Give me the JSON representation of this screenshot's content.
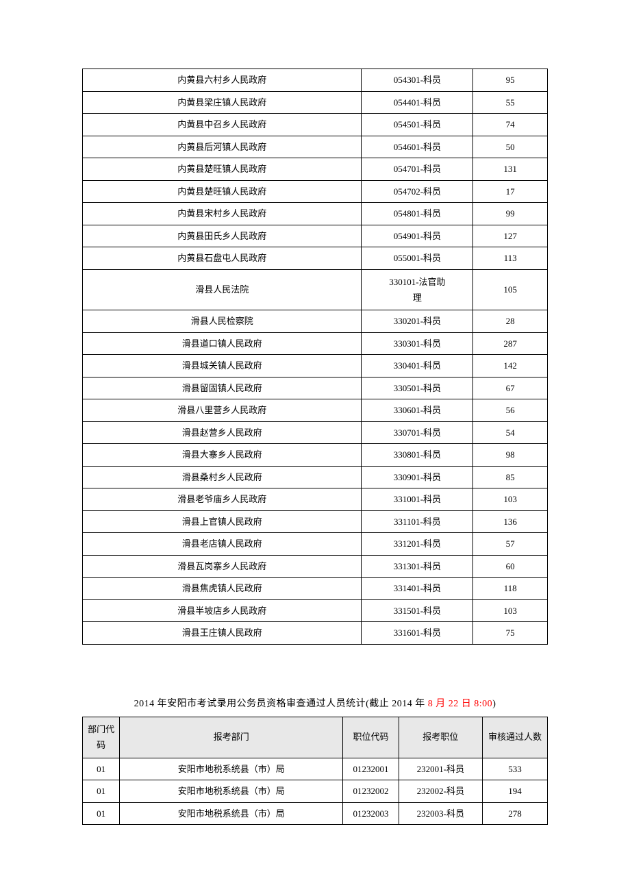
{
  "table1": {
    "rows": [
      {
        "dept": "内黄县六村乡人民政府",
        "pos": "054301-科员",
        "count": "95"
      },
      {
        "dept": "内黄县梁庄镇人民政府",
        "pos": "054401-科员",
        "count": "55"
      },
      {
        "dept": "内黄县中召乡人民政府",
        "pos": "054501-科员",
        "count": "74"
      },
      {
        "dept": "内黄县后河镇人民政府",
        "pos": "054601-科员",
        "count": "50"
      },
      {
        "dept": "内黄县楚旺镇人民政府",
        "pos": "054701-科员",
        "count": "131"
      },
      {
        "dept": "内黄县楚旺镇人民政府",
        "pos": "054702-科员",
        "count": "17"
      },
      {
        "dept": "内黄县宋村乡人民政府",
        "pos": "054801-科员",
        "count": "99"
      },
      {
        "dept": "内黄县田氏乡人民政府",
        "pos": "054901-科员",
        "count": "127"
      },
      {
        "dept": "内黄县石盘屯人民政府",
        "pos": "055001-科员",
        "count": "113"
      },
      {
        "dept": "滑县人民法院",
        "pos": "330101-法官助理",
        "count": "105",
        "twoline": true
      },
      {
        "dept": "滑县人民检察院",
        "pos": "330201-科员",
        "count": "28"
      },
      {
        "dept": "滑县道口镇人民政府",
        "pos": "330301-科员",
        "count": "287"
      },
      {
        "dept": "滑县城关镇人民政府",
        "pos": "330401-科员",
        "count": "142"
      },
      {
        "dept": "滑县留固镇人民政府",
        "pos": "330501-科员",
        "count": "67"
      },
      {
        "dept": "滑县八里营乡人民政府",
        "pos": "330601-科员",
        "count": "56"
      },
      {
        "dept": "滑县赵营乡人民政府",
        "pos": "330701-科员",
        "count": "54"
      },
      {
        "dept": "滑县大寨乡人民政府",
        "pos": "330801-科员",
        "count": "98"
      },
      {
        "dept": "滑县桑村乡人民政府",
        "pos": "330901-科员",
        "count": "85"
      },
      {
        "dept": "滑县老爷庙乡人民政府",
        "pos": "331001-科员",
        "count": "103"
      },
      {
        "dept": "滑县上官镇人民政府",
        "pos": "331101-科员",
        "count": "136"
      },
      {
        "dept": "滑县老店镇人民政府",
        "pos": "331201-科员",
        "count": "57"
      },
      {
        "dept": "滑县瓦岗寨乡人民政府",
        "pos": "331301-科员",
        "count": "60"
      },
      {
        "dept": "滑县焦虎镇人民政府",
        "pos": "331401-科员",
        "count": "118"
      },
      {
        "dept": "滑县半坡店乡人民政府",
        "pos": "331501-科员",
        "count": "103"
      },
      {
        "dept": "滑县王庄镇人民政府",
        "pos": "331601-科员",
        "count": "75"
      }
    ]
  },
  "title2": {
    "prefix": "2014 年安阳市考试录用公务员资格审查通过人员统计(截止 2014 年 ",
    "red": "8 月 22 日 8:00",
    "suffix": ")"
  },
  "table2": {
    "headers": {
      "c1": "部门代码",
      "c2": "报考部门",
      "c3": "职位代码",
      "c4": "报考职位",
      "c5": "审核通过人数"
    },
    "rows": [
      {
        "code": "01",
        "dept": "安阳市地税系统县（市）局",
        "poscode": "01232001",
        "pos": "232001-科员",
        "count": "533"
      },
      {
        "code": "01",
        "dept": "安阳市地税系统县（市）局",
        "poscode": "01232002",
        "pos": "232002-科员",
        "count": "194"
      },
      {
        "code": "01",
        "dept": "安阳市地税系统县（市）局",
        "poscode": "01232003",
        "pos": "232003-科员",
        "count": "278"
      }
    ]
  }
}
